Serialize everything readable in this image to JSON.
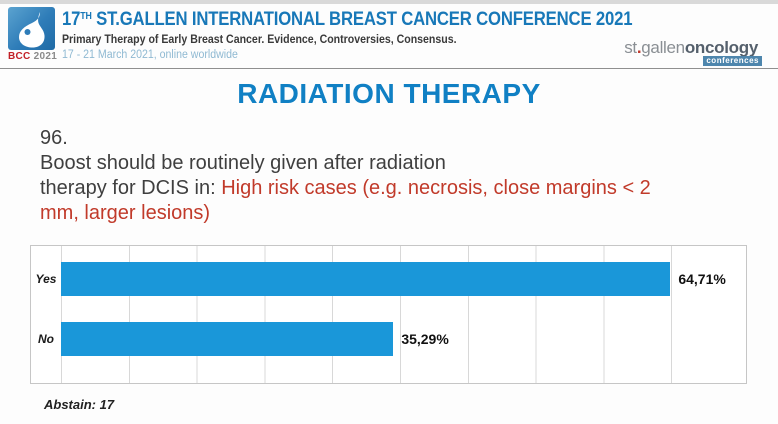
{
  "header": {
    "badge": {
      "bcc": "BCC",
      "year": "2021"
    },
    "title": {
      "num": "17",
      "sup": "TH",
      "rest": " ST.GALLEN INTERNATIONAL BREAST CANCER CONFERENCE 2021"
    },
    "subtitle": "Primary Therapy of Early Breast Cancer. Evidence, Controversies, Consensus.",
    "date_line": "17 - 21 March 2021, online worldwide",
    "brand": {
      "prefix": "st",
      "dot": ".",
      "middle": "gallen",
      "bold": "oncology",
      "tag": "conferences"
    }
  },
  "section_title": "RADIATION THERAPY",
  "question": {
    "number": "96.",
    "lines": [
      {
        "black": "Boost should be routinely given after radiation",
        "red": ""
      },
      {
        "black": "therapy for DCIS in: ",
        "red": "High risk cases (e.g. necrosis, close margins < 2"
      },
      {
        "black": "",
        "red": "mm, larger lesions)"
      }
    ]
  },
  "chart_data": {
    "type": "bar",
    "orientation": "horizontal",
    "title": "",
    "xlabel": "",
    "ylabel": "",
    "categories": [
      "Yes",
      "No"
    ],
    "values": [
      64.71,
      35.29
    ],
    "value_labels": [
      "64,71%",
      "35,29%"
    ],
    "xlim": [
      0,
      72
    ],
    "grid": true,
    "grid_interval_pct_of_axis": 10,
    "legend": "none",
    "bar_color": "#1a97d9"
  },
  "footer": {
    "abstain_label": "Abstain: 17"
  },
  "colors": {
    "title_blue": "#1878b8",
    "section_blue": "#1080c4",
    "red_text": "#c13a2a",
    "bcc_red": "#c22026",
    "logo_blue": "#2e7cb8",
    "date_blue": "#8fb9d2",
    "brand_tag_blue": "#4e86ad"
  }
}
